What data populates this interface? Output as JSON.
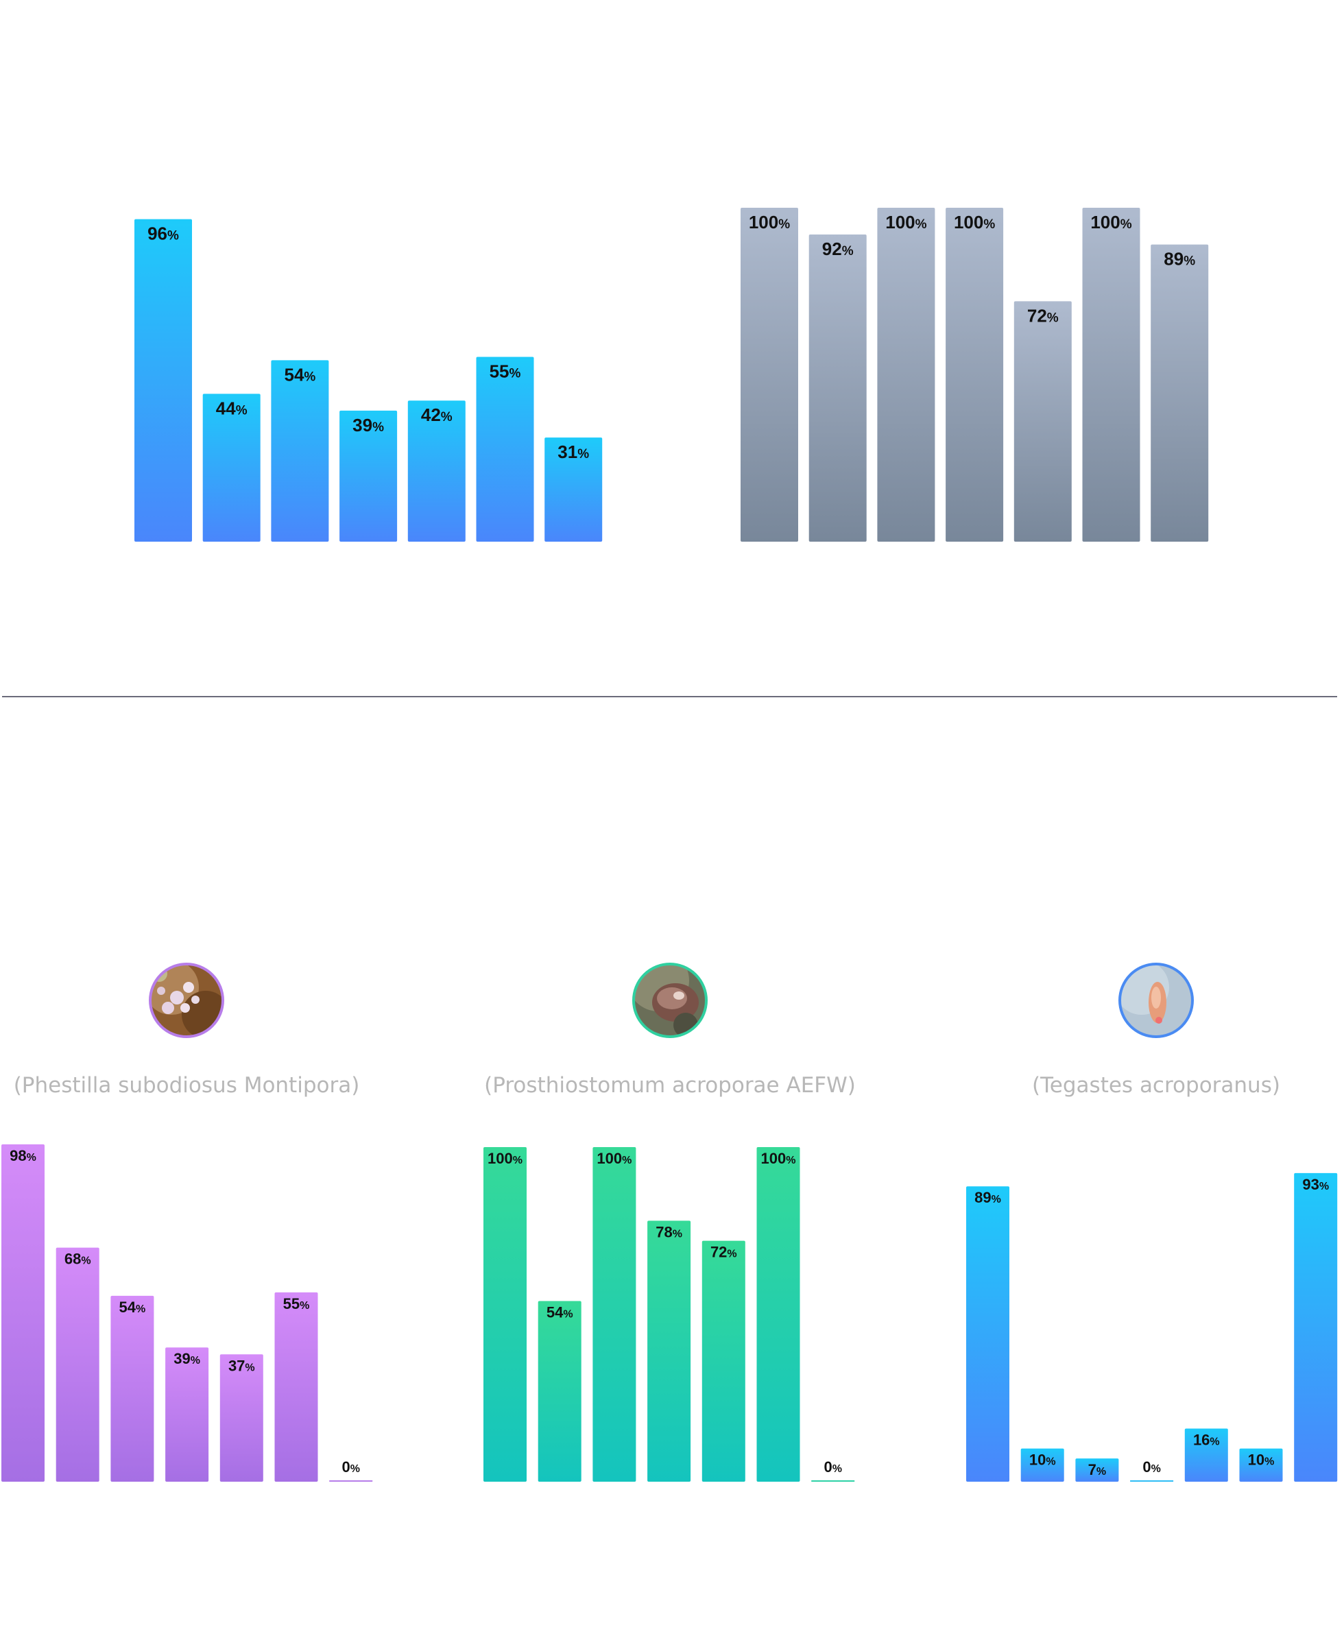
{
  "chart_data": [
    {
      "type": "bar",
      "values": [
        96,
        44,
        54,
        39,
        42,
        55,
        31
      ],
      "unit": "%",
      "colors": {
        "top": "#1ecbfa",
        "bottom": "#4a86fb",
        "zero": "#2fbdf5"
      },
      "ylim": [
        0,
        100
      ]
    },
    {
      "type": "bar",
      "values": [
        100,
        92,
        100,
        100,
        72,
        100,
        89
      ],
      "unit": "%",
      "colors": {
        "top": "#afbbcf",
        "bottom": "#78879a",
        "zero": "#8a97a8"
      },
      "ylim": [
        0,
        100
      ]
    },
    {
      "type": "bar",
      "label": "(Phestilla subodiosus Montipora)",
      "values": [
        98,
        68,
        54,
        39,
        37,
        55,
        0
      ],
      "unit": "%",
      "colors": {
        "top": "#d58cf9",
        "bottom": "#a56fe4",
        "zero": "#b77de9"
      },
      "avatar_ring": "#b77de9",
      "ylim": [
        0,
        100
      ]
    },
    {
      "type": "bar",
      "label": "(Prosthiostomum acroporae AEFW)",
      "values": [
        100,
        54,
        100,
        78,
        72,
        100,
        0
      ],
      "unit": "%",
      "colors": {
        "top": "#36da98",
        "bottom": "#14c4be",
        "zero": "#2ed1a6"
      },
      "avatar_ring": "#30d0a0",
      "ylim": [
        0,
        100
      ]
    },
    {
      "type": "bar",
      "label": "(Tegastes acroporanus)",
      "values": [
        89,
        10,
        7,
        0,
        16,
        10,
        93
      ],
      "unit": "%",
      "colors": {
        "top": "#1ecbfa",
        "bottom": "#4a86fb",
        "zero": "#2fbdf5"
      },
      "avatar_ring": "#4a8bf2",
      "ylim": [
        0,
        100
      ]
    }
  ],
  "divider_color": "#6b6b7b"
}
